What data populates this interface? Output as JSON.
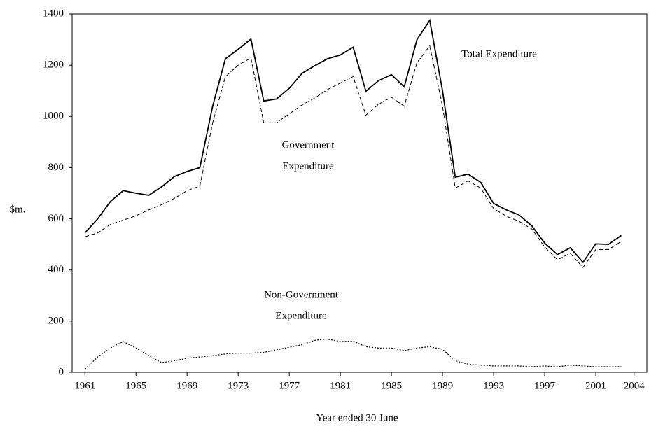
{
  "chart_data": {
    "type": "line",
    "y_label": "$m.",
    "x_label": "Year ended 30 June",
    "x": [
      1961,
      1962,
      1963,
      1964,
      1965,
      1966,
      1967,
      1968,
      1969,
      1970,
      1971,
      1972,
      1973,
      1974,
      1975,
      1976,
      1977,
      1978,
      1979,
      1980,
      1981,
      1982,
      1983,
      1984,
      1985,
      1986,
      1987,
      1988,
      1989,
      1990,
      1991,
      1992,
      1993,
      1994,
      1995,
      1996,
      1997,
      1998,
      1999,
      2000,
      2001,
      2002,
      2003
    ],
    "series": [
      {
        "color": "#000000",
        "dash": "solid",
        "values": [
          545,
          600,
          668,
          710,
          700,
          692,
          725,
          765,
          785,
          800,
          1040,
          1225,
          1262,
          1302,
          1060,
          1068,
          1110,
          1168,
          1198,
          1225,
          1240,
          1270,
          1098,
          1140,
          1163,
          1115,
          1300,
          1375,
          1100,
          762,
          775,
          742,
          660,
          635,
          615,
          572,
          505,
          460,
          487,
          430,
          502,
          500,
          535
        ]
      },
      {
        "color": "#000000",
        "dash": "dashed",
        "values": [
          530,
          545,
          578,
          595,
          612,
          635,
          655,
          680,
          710,
          728,
          975,
          1155,
          1200,
          1228,
          975,
          975,
          1010,
          1045,
          1072,
          1105,
          1130,
          1155,
          1005,
          1048,
          1075,
          1040,
          1210,
          1275,
          1040,
          720,
          748,
          720,
          640,
          610,
          590,
          560,
          490,
          440,
          465,
          410,
          480,
          480,
          512
        ]
      },
      {
        "color": "#000000",
        "dash": "dotted",
        "values": [
          12,
          60,
          95,
          120,
          95,
          65,
          38,
          45,
          55,
          60,
          65,
          72,
          75,
          75,
          78,
          88,
          98,
          108,
          125,
          130,
          120,
          122,
          100,
          95,
          95,
          85,
          95,
          100,
          90,
          45,
          32,
          28,
          25,
          25,
          25,
          22,
          25,
          22,
          28,
          25,
          22,
          22,
          22
        ]
      }
    ],
    "annotations": [
      {
        "lines": [
          "Total Expenditure"
        ]
      },
      {
        "lines": [
          "Government",
          "Expenditure"
        ]
      },
      {
        "lines": [
          "Non-Government",
          "Expenditure"
        ]
      }
    ],
    "xlim": [
      1960,
      2005
    ],
    "xticks": [
      1961,
      1965,
      1969,
      1973,
      1977,
      1981,
      1985,
      1989,
      1993,
      1997,
      2001,
      2004
    ],
    "ylim": [
      0,
      1400
    ],
    "yticks": [
      0,
      200,
      400,
      600,
      800,
      1000,
      1200,
      1400
    ]
  }
}
